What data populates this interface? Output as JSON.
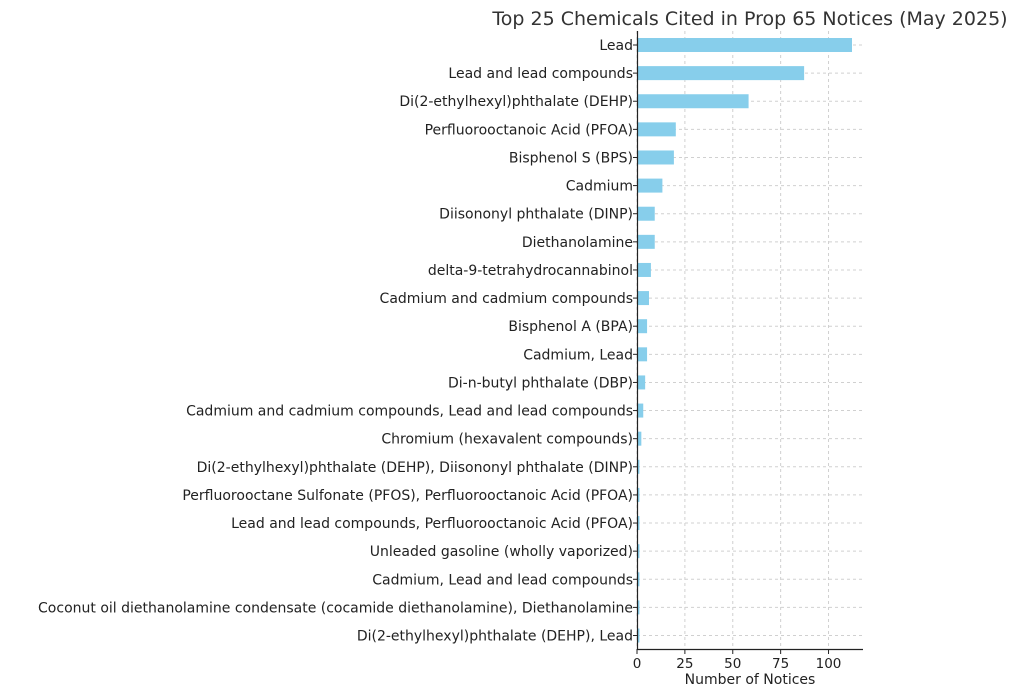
{
  "chart_data": {
    "type": "bar",
    "orientation": "horizontal",
    "title": "Top 25 Chemicals Cited in Prop 65 Notices (May 2025)",
    "xlabel": "Number of Notices",
    "ylabel": "",
    "xlim": [
      0,
      118
    ],
    "xticks": [
      0,
      25,
      50,
      75,
      100
    ],
    "grid": true,
    "bar_color": "#87CEEB",
    "categories": [
      "Lead",
      "Lead and lead compounds",
      "Di(2-ethylhexyl)phthalate (DEHP)",
      "Perfluorooctanoic Acid (PFOA)",
      "Bisphenol S (BPS)",
      "Cadmium",
      "Diisononyl phthalate (DINP)",
      "Diethanolamine",
      "delta-9-tetrahydrocannabinol",
      "Cadmium and cadmium compounds",
      "Bisphenol A (BPA)",
      "Cadmium, Lead",
      "Di-n-butyl phthalate (DBP)",
      "Cadmium and cadmium compounds, Lead and lead compounds",
      "Chromium (hexavalent compounds)",
      "Di(2-ethylhexyl)phthalate (DEHP), Diisononyl phthalate (DINP)",
      "Perfluorooctane Sulfonate (PFOS), Perfluorooctanoic Acid (PFOA)",
      "Lead and lead compounds, Perfluorooctanoic Acid (PFOA)",
      "Unleaded gasoline (wholly vaporized)",
      "Cadmium, Lead and lead compounds",
      "Coconut oil diethanolamine condensate (cocamide diethanolamine), Diethanolamine",
      "Di(2-ethylhexyl)phthalate (DEHP), Lead"
    ],
    "values": [
      112,
      87,
      58,
      20,
      19,
      13,
      9,
      9,
      7,
      6,
      5,
      5,
      4,
      3,
      2,
      1,
      1,
      1,
      1,
      1,
      1,
      1
    ]
  }
}
